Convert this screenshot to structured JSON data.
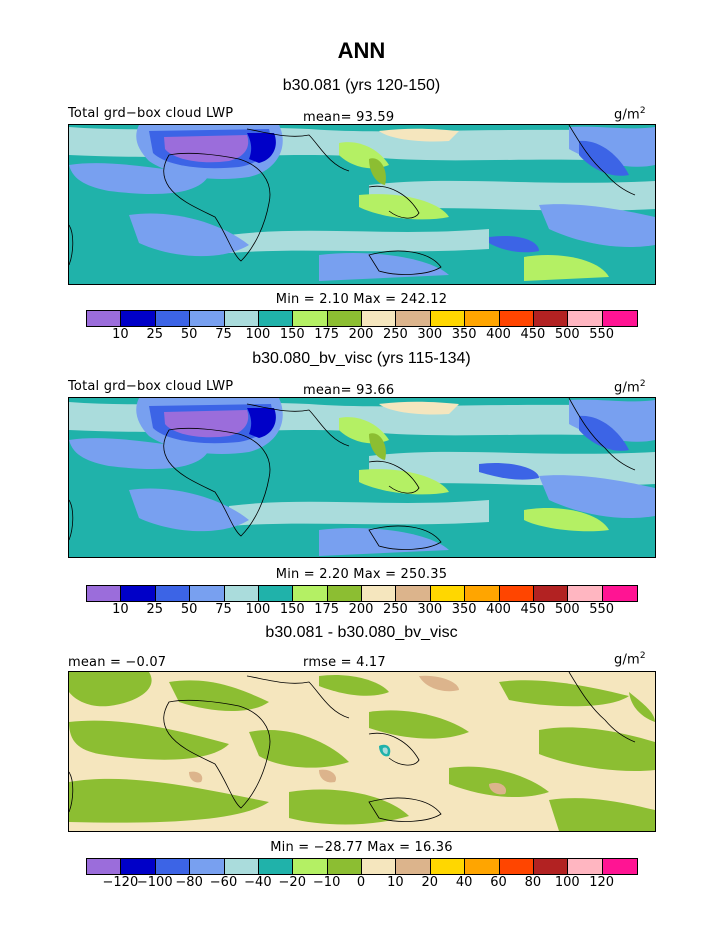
{
  "title": "ANN",
  "panels": [
    {
      "subtitle": "b30.081 (yrs 120-150)",
      "left_label": "Total grd−box cloud LWP",
      "mid_label": "mean=  93.59",
      "units": "g/m",
      "units_sup": "2",
      "minmax": "Min =   2.10  Max = 242.12",
      "colorbar": {
        "colors": [
          "#9b6ddb",
          "#0000c8",
          "#3c64e6",
          "#78a0f0",
          "#aadcdc",
          "#20b2aa",
          "#b4f064",
          "#8cbe32",
          "#f5e6be",
          "#dcb48c",
          "#ffd700",
          "#ffa500",
          "#ff4500",
          "#b22222",
          "#ffb6c1",
          "#ff1493"
        ],
        "ticks": [
          "10",
          "25",
          "50",
          "75",
          "100",
          "150",
          "175",
          "200",
          "250",
          "300",
          "350",
          "400",
          "450",
          "500",
          "550"
        ]
      }
    },
    {
      "subtitle": "b30.080_bv_visc (yrs 115-134)",
      "left_label": "Total grd−box cloud LWP",
      "mid_label": "mean=  93.66",
      "units": "g/m",
      "units_sup": "2",
      "minmax": "Min =   2.20  Max = 250.35",
      "colorbar": {
        "colors": [
          "#9b6ddb",
          "#0000c8",
          "#3c64e6",
          "#78a0f0",
          "#aadcdc",
          "#20b2aa",
          "#b4f064",
          "#8cbe32",
          "#f5e6be",
          "#dcb48c",
          "#ffd700",
          "#ffa500",
          "#ff4500",
          "#b22222",
          "#ffb6c1",
          "#ff1493"
        ],
        "ticks": [
          "10",
          "25",
          "50",
          "75",
          "100",
          "150",
          "175",
          "200",
          "250",
          "300",
          "350",
          "400",
          "450",
          "500",
          "550"
        ]
      }
    },
    {
      "subtitle": "b30.081 - b30.080_bv_visc",
      "left_label": "mean =  −0.07",
      "mid_label": "rmse =   4.17",
      "units": "g/m",
      "units_sup": "2",
      "minmax": "Min = −28.77  Max =  16.36",
      "colorbar": {
        "colors": [
          "#9b6ddb",
          "#0000c8",
          "#3c64e6",
          "#78a0f0",
          "#aadcdc",
          "#20b2aa",
          "#b4f064",
          "#8cbe32",
          "#f5e6be",
          "#dcb48c",
          "#ffd700",
          "#ffa500",
          "#ff4500",
          "#b22222",
          "#ffb6c1",
          "#ff1493"
        ],
        "ticks": [
          "−120",
          "−100",
          "−80",
          "−60",
          "−40",
          "−20",
          "−10",
          "0",
          "10",
          "20",
          "40",
          "60",
          "80",
          "100",
          "120"
        ]
      }
    }
  ]
}
